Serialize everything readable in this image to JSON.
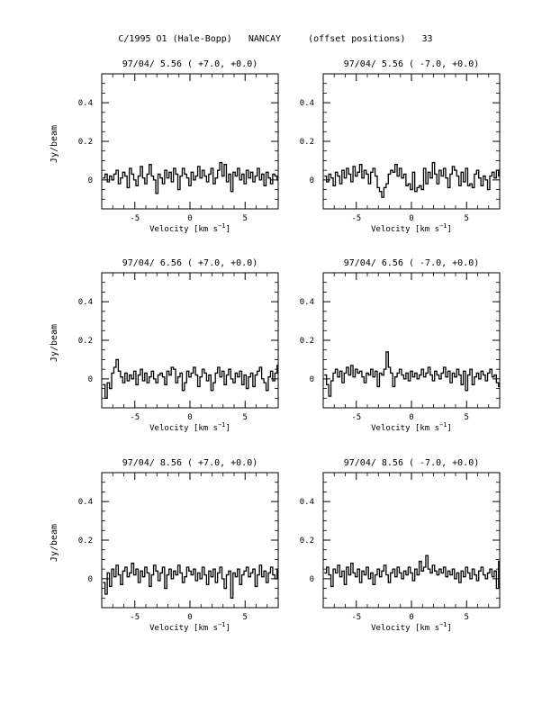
{
  "page": {
    "title": "C/1995 O1 (Hale-Bopp)   NANCAY     (offset positions)   33"
  },
  "chart_data": [
    {
      "type": "line",
      "step": true,
      "title": "97/04/ 5.56  ( +7.0, +0.0)",
      "xlabel": "Velocity [km s⁻¹]",
      "ylabel": "Jy/beam",
      "xlim": [
        -8,
        8
      ],
      "ylim": [
        -0.15,
        0.55
      ],
      "xticks": [
        -5,
        0,
        5
      ],
      "yticks": [
        0,
        0.2,
        0.4
      ],
      "ytick_labels": [
        "0",
        "0.2",
        "0.4"
      ],
      "x_start": -7.8,
      "x_step": 0.2,
      "values": [
        0.01,
        0.03,
        -0.01,
        0.02,
        0.0,
        0.03,
        0.05,
        -0.02,
        0.01,
        0.04,
        0.02,
        -0.04,
        0.06,
        0.03,
        0.0,
        -0.03,
        0.02,
        0.07,
        0.01,
        -0.02,
        0.03,
        0.08,
        0.02,
        0.0,
        -0.07,
        0.03,
        0.01,
        -0.02,
        0.05,
        0.01,
        0.04,
        -0.01,
        0.06,
        0.03,
        -0.05,
        0.02,
        0.06,
        0.03,
        0.01,
        -0.03,
        0.04,
        0.0,
        0.02,
        0.07,
        0.01,
        0.05,
        0.02,
        -0.01,
        0.03,
        0.06,
        -0.02,
        0.01,
        0.05,
        0.09,
        0.02,
        0.08,
        -0.01,
        0.03,
        -0.06,
        0.04,
        0.02,
        0.06,
        0.0,
        0.03,
        -0.02,
        0.05,
        0.01,
        0.04,
        -0.01,
        0.02,
        0.06,
        0.0,
        0.03,
        -0.03,
        0.04,
        0.01,
        -0.02,
        0.03,
        0.02,
        0.0
      ]
    },
    {
      "type": "line",
      "step": true,
      "title": "97/04/ 5.56  ( -7.0, +0.0)",
      "xlabel": "Velocity [km s⁻¹]",
      "ylabel": "",
      "xlim": [
        -8,
        8
      ],
      "ylim": [
        -0.15,
        0.55
      ],
      "xticks": [
        -5,
        0,
        5
      ],
      "yticks": [
        0,
        0.2,
        0.4
      ],
      "ytick_labels": [
        "0",
        "0.2",
        "0.4"
      ],
      "x_start": -7.8,
      "x_step": 0.2,
      "values": [
        0.02,
        -0.01,
        0.03,
        0.01,
        -0.03,
        0.04,
        0.02,
        -0.02,
        0.05,
        0.01,
        0.06,
        0.03,
        -0.01,
        0.07,
        0.02,
        0.04,
        0.08,
        0.01,
        0.05,
        0.03,
        -0.02,
        0.04,
        0.06,
        0.02,
        -0.04,
        -0.06,
        -0.09,
        -0.04,
        -0.02,
        0.03,
        0.05,
        0.04,
        0.08,
        0.02,
        0.06,
        0.01,
        0.03,
        -0.03,
        -0.02,
        -0.05,
        0.04,
        -0.06,
        -0.04,
        -0.03,
        -0.05,
        0.06,
        -0.02,
        0.04,
        0.01,
        0.09,
        0.03,
        -0.02,
        0.05,
        0.02,
        0.06,
        0.01,
        -0.04,
        0.03,
        0.07,
        0.05,
        0.02,
        -0.03,
        0.04,
        -0.01,
        0.06,
        -0.03,
        -0.02,
        -0.04,
        0.03,
        0.05,
        0.01,
        -0.03,
        0.02,
        0.0,
        -0.05,
        0.02,
        0.04,
        0.01,
        0.05,
        0.02
      ]
    },
    {
      "type": "line",
      "step": true,
      "title": "97/04/ 6.56  ( +7.0, +0.0)",
      "xlabel": "Velocity [km s⁻¹]",
      "ylabel": "Jy/beam",
      "xlim": [
        -8,
        8
      ],
      "ylim": [
        -0.15,
        0.55
      ],
      "xticks": [
        -5,
        0,
        5
      ],
      "yticks": [
        0,
        0.2,
        0.4
      ],
      "ytick_labels": [
        "0",
        "0.2",
        "0.4"
      ],
      "x_start": -7.8,
      "x_step": 0.2,
      "values": [
        -0.03,
        -0.1,
        -0.02,
        -0.05,
        0.03,
        0.06,
        0.1,
        0.04,
        0.01,
        -0.02,
        0.03,
        -0.01,
        0.02,
        0.0,
        0.04,
        -0.03,
        0.02,
        0.05,
        -0.01,
        0.03,
        -0.02,
        0.01,
        0.04,
        0.0,
        -0.02,
        0.02,
        0.03,
        0.01,
        -0.03,
        0.04,
        0.02,
        0.06,
        0.05,
        -0.02,
        0.01,
        0.03,
        -0.06,
        -0.02,
        0.04,
        0.01,
        0.03,
        0.06,
        0.02,
        -0.04,
        0.01,
        0.05,
        0.03,
        -0.01,
        0.02,
        -0.06,
        -0.02,
        0.03,
        0.06,
        0.01,
        0.04,
        -0.03,
        0.02,
        0.05,
        0.0,
        -0.02,
        0.03,
        0.01,
        0.04,
        -0.03,
        0.02,
        -0.05,
        0.01,
        0.03,
        -0.04,
        0.02,
        0.04,
        0.06,
        0.0,
        -0.02,
        -0.06,
        0.01,
        0.04,
        -0.01,
        0.03,
        0.07
      ]
    },
    {
      "type": "line",
      "step": true,
      "title": "97/04/ 6.56  ( -7.0, +0.0)",
      "xlabel": "Velocity [km s⁻¹]",
      "ylabel": "",
      "xlim": [
        -8,
        8
      ],
      "ylim": [
        -0.15,
        0.55
      ],
      "xticks": [
        -5,
        0,
        5
      ],
      "yticks": [
        0,
        0.2,
        0.4
      ],
      "ytick_labels": [
        "0",
        "0.2",
        "0.4"
      ],
      "x_start": -7.8,
      "x_step": 0.2,
      "values": [
        0.02,
        -0.03,
        -0.09,
        -0.01,
        0.03,
        0.05,
        0.01,
        0.04,
        -0.02,
        0.03,
        0.06,
        0.02,
        0.07,
        0.01,
        0.05,
        0.03,
        0.04,
        0.01,
        -0.02,
        0.03,
        0.02,
        0.05,
        0.01,
        0.04,
        -0.04,
        0.03,
        0.02,
        0.05,
        0.14,
        0.06,
        0.03,
        -0.04,
        0.01,
        0.03,
        0.05,
        0.02,
        0.0,
        0.03,
        -0.01,
        0.04,
        0.01,
        0.03,
        0.0,
        0.02,
        0.05,
        0.01,
        0.03,
        0.06,
        0.02,
        -0.01,
        0.04,
        0.02,
        0.0,
        0.03,
        0.06,
        0.01,
        0.04,
        -0.02,
        0.03,
        0.01,
        0.05,
        0.02,
        -0.03,
        0.04,
        -0.06,
        0.02,
        0.05,
        -0.03,
        0.01,
        0.03,
        0.0,
        0.04,
        0.02,
        -0.01,
        0.03,
        0.05,
        0.01,
        0.02,
        -0.02,
        -0.04
      ]
    },
    {
      "type": "line",
      "step": true,
      "title": "97/04/ 8.56  ( +7.0, +0.0)",
      "xlabel": "Velocity [km s⁻¹]",
      "ylabel": "Jy/beam",
      "xlim": [
        -8,
        8
      ],
      "ylim": [
        -0.15,
        0.55
      ],
      "xticks": [
        -5,
        0,
        5
      ],
      "yticks": [
        0,
        0.2,
        0.4
      ],
      "ytick_labels": [
        "0",
        "0.2",
        "0.4"
      ],
      "x_start": -7.8,
      "x_step": 0.2,
      "values": [
        -0.02,
        -0.08,
        0.03,
        -0.04,
        0.05,
        0.01,
        0.07,
        0.02,
        -0.03,
        0.04,
        0.06,
        0.01,
        0.03,
        0.08,
        0.02,
        0.05,
        -0.02,
        0.04,
        0.01,
        0.06,
        0.03,
        -0.04,
        0.02,
        0.07,
        0.04,
        -0.01,
        0.03,
        0.06,
        -0.05,
        0.02,
        0.05,
        0.0,
        0.04,
        0.02,
        0.07,
        0.03,
        -0.02,
        0.01,
        0.06,
        0.04,
        0.02,
        0.05,
        -0.01,
        0.03,
        0.0,
        0.06,
        0.02,
        -0.03,
        0.04,
        0.01,
        0.05,
        -0.02,
        0.03,
        0.06,
        0.0,
        -0.05,
        0.02,
        0.04,
        -0.1,
        0.03,
        0.01,
        0.05,
        -0.03,
        0.02,
        0.04,
        0.06,
        0.01,
        0.03,
        0.05,
        -0.04,
        0.02,
        0.07,
        0.01,
        0.04,
        -0.02,
        0.03,
        0.06,
        0.02,
        0.0,
        0.05
      ]
    },
    {
      "type": "line",
      "step": true,
      "title": "97/04/ 8.56  ( -7.0, +0.0)",
      "xlabel": "Velocity [km s⁻¹]",
      "ylabel": "",
      "xlim": [
        -8,
        8
      ],
      "ylim": [
        -0.15,
        0.55
      ],
      "xticks": [
        -5,
        0,
        5
      ],
      "yticks": [
        0,
        0.2,
        0.4
      ],
      "ytick_labels": [
        "0",
        "0.2",
        "0.4"
      ],
      "x_start": -7.8,
      "x_step": 0.2,
      "values": [
        0.03,
        0.06,
        0.02,
        -0.04,
        0.05,
        0.03,
        0.07,
        0.01,
        0.04,
        -0.03,
        0.06,
        0.02,
        0.08,
        0.03,
        0.01,
        0.05,
        -0.02,
        0.04,
        0.02,
        0.06,
        0.0,
        0.03,
        -0.03,
        0.02,
        0.05,
        0.01,
        0.04,
        0.07,
        0.02,
        -0.02,
        0.03,
        0.05,
        0.01,
        0.06,
        0.03,
        0.0,
        0.04,
        0.02,
        0.06,
        0.03,
        -0.01,
        0.05,
        0.02,
        0.09,
        0.04,
        0.06,
        0.12,
        0.05,
        0.03,
        0.07,
        0.04,
        0.02,
        0.05,
        0.03,
        0.06,
        0.01,
        0.04,
        0.02,
        0.05,
        0.0,
        0.03,
        -0.02,
        0.04,
        0.01,
        0.06,
        0.03,
        0.0,
        0.05,
        0.02,
        -0.01,
        0.04,
        0.06,
        0.02,
        0.0,
        0.03,
        0.05,
        0.01,
        0.04,
        -0.05,
        0.09
      ]
    }
  ]
}
